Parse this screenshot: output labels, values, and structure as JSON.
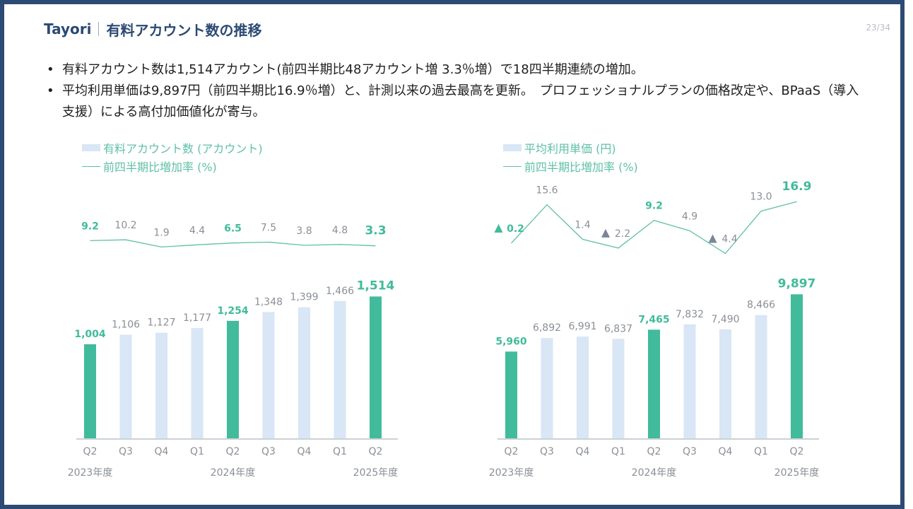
{
  "header": {
    "brand": "Tayori",
    "title": "有料アカウント数の推移",
    "page": "23/34"
  },
  "bullets": [
    "有料アカウント数は1,514アカウント(前四半期比48アカウント増 3.3％増）で18四半期連続の増加。",
    "平均利用単価は9,897円（前四半期比16.9％増）と、計測以来の過去最高を更新。　プロフェッショナルプランの価格改定や、BPaaS（導入支援）による高付加価値化が寄与。"
  ],
  "colors": {
    "highlight": "#41bb9b",
    "normal": "#d8e6f5",
    "line": "#5fc0a8",
    "label_gray": "#8a8f96",
    "negative": "#7a8595",
    "axis": "#9aa3ad",
    "frame": "#2c4a73"
  },
  "chart_data": [
    {
      "type": "bar",
      "legend": {
        "bar": "有料アカウント数 (アカウント)",
        "line": "前四半期比増加率 (%)"
      },
      "categories": [
        "Q2",
        "Q3",
        "Q4",
        "Q1",
        "Q2",
        "Q3",
        "Q4",
        "Q1",
        "Q2"
      ],
      "values": [
        1004,
        1106,
        1127,
        1177,
        1254,
        1348,
        1399,
        1466,
        1514
      ],
      "value_labels": [
        "1,004",
        "1,106",
        "1,127",
        "1,177",
        "1,254",
        "1,348",
        "1,399",
        "1,466",
        "1,514"
      ],
      "highlight": [
        true,
        false,
        false,
        false,
        true,
        false,
        false,
        false,
        true
      ],
      "ylim": [
        0,
        1600
      ],
      "year_labels": [
        {
          "index": 0,
          "label": "2023年度"
        },
        {
          "index": 4,
          "label": "2024年度"
        },
        {
          "index": 8,
          "label": "2025年度"
        }
      ],
      "growth": {
        "values": [
          9.2,
          10.2,
          1.9,
          4.4,
          6.5,
          7.5,
          3.8,
          4.8,
          3.3
        ],
        "labels": [
          "9.2",
          "10.2",
          "1.9",
          "4.4",
          "6.5",
          "7.5",
          "3.8",
          "4.8",
          "3.3"
        ],
        "negative": [
          false,
          false,
          false,
          false,
          false,
          false,
          false,
          false,
          false
        ],
        "ylim": [
          -10,
          60
        ]
      }
    },
    {
      "type": "bar",
      "legend": {
        "bar": "平均利用単価 (円)",
        "line": "前四半期比増加率 (%)"
      },
      "categories": [
        "Q2",
        "Q3",
        "Q4",
        "Q1",
        "Q2",
        "Q3",
        "Q4",
        "Q1",
        "Q2"
      ],
      "values": [
        5960,
        6892,
        6991,
        6837,
        7465,
        7832,
        7490,
        8466,
        9897
      ],
      "value_labels": [
        "5,960",
        "6,892",
        "6,991",
        "6,837",
        "7,465",
        "7,832",
        "7,490",
        "8,466",
        "9,897"
      ],
      "highlight": [
        true,
        false,
        false,
        false,
        true,
        false,
        false,
        false,
        true
      ],
      "ylim": [
        0,
        10300
      ],
      "year_labels": [
        {
          "index": 0,
          "label": "2023年度"
        },
        {
          "index": 4,
          "label": "2024年度"
        },
        {
          "index": 8,
          "label": "2025年度"
        }
      ],
      "growth": {
        "values": [
          -0.2,
          15.6,
          1.4,
          -2.2,
          9.2,
          4.9,
          -4.4,
          13.0,
          16.9
        ],
        "labels": [
          "0.2",
          "15.6",
          "1.4",
          "2.2",
          "9.2",
          "4.9",
          "4.4",
          "13.0",
          "16.9"
        ],
        "negative": [
          true,
          false,
          false,
          true,
          false,
          false,
          true,
          false,
          false
        ],
        "ylim": [
          -6,
          19
        ]
      }
    }
  ]
}
